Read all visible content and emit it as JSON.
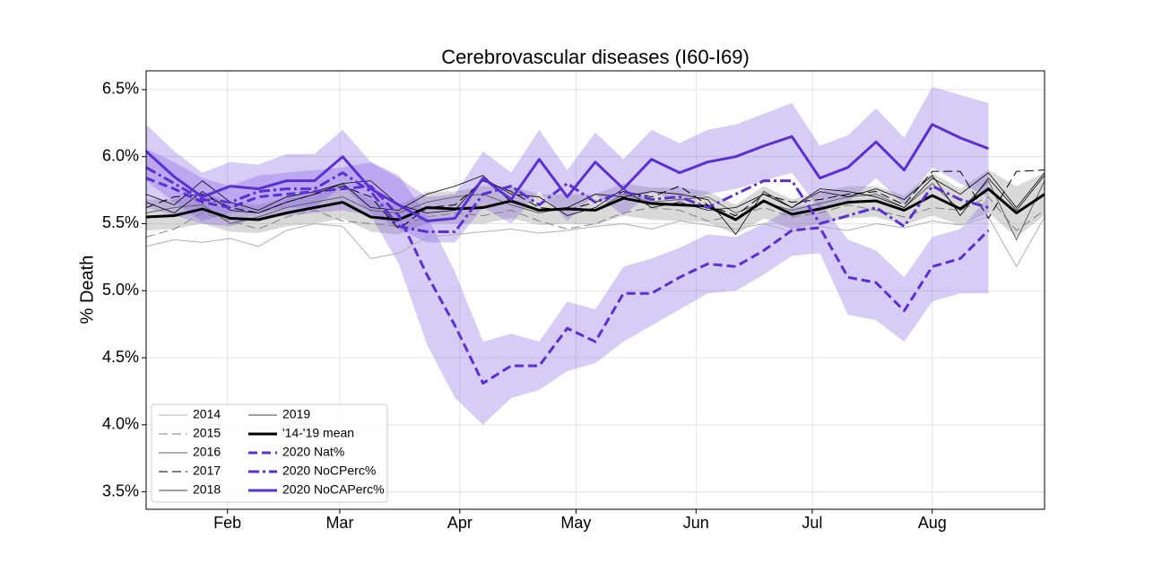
{
  "chart_data": {
    "type": "line",
    "title": "Cerebrovascular diseases (I60-I69)",
    "y_label": "% Death",
    "x": [
      11,
      18.25,
      25.5,
      32.75,
      40,
      47.25,
      54.5,
      61.75,
      69,
      76.25,
      83.5,
      90.75,
      98,
      105.25,
      112.5,
      119.75,
      127,
      134.25,
      141.5,
      148.75,
      156,
      163.25,
      170.5,
      177.75,
      185,
      192.25,
      199.5,
      206.75,
      214,
      221.25,
      228.5,
      235.75,
      243
    ],
    "xlim": [
      11,
      243
    ],
    "xticks": [
      {
        "value": 32,
        "label": "Feb"
      },
      {
        "value": 61,
        "label": "Mar"
      },
      {
        "value": 92,
        "label": "Apr"
      },
      {
        "value": 122,
        "label": "May"
      },
      {
        "value": 153,
        "label": "Jun"
      },
      {
        "value": 183,
        "label": "Jul"
      },
      {
        "value": 214,
        "label": "Aug"
      }
    ],
    "ylim": [
      3.37,
      6.64
    ],
    "yticks": [
      {
        "value": 3.5,
        "label": "3.5%"
      },
      {
        "value": 4.0,
        "label": "4.0%"
      },
      {
        "value": 4.5,
        "label": "4.5%"
      },
      {
        "value": 5.0,
        "label": "5.0%"
      },
      {
        "value": 5.5,
        "label": "5.5%"
      },
      {
        "value": 6.0,
        "label": "6.0%"
      },
      {
        "value": 6.5,
        "label": "6.5%"
      }
    ],
    "grid": true,
    "legend": "lower left",
    "series": [
      {
        "name": "2014",
        "color": "#b0b0b0",
        "linestyle": "solid",
        "linewidth": 1,
        "values": [
          5.33,
          5.38,
          5.36,
          5.39,
          5.33,
          5.45,
          5.5,
          5.48,
          5.24,
          5.28,
          5.4,
          5.42,
          5.44,
          5.46,
          5.43,
          5.45,
          5.48,
          5.5,
          5.46,
          5.52,
          5.49,
          5.46,
          5.5,
          5.44,
          5.48,
          5.45,
          5.5,
          5.47,
          5.52,
          5.49,
          5.55,
          5.18,
          5.55
        ]
      },
      {
        "name": "2015",
        "color": "#808080",
        "linestyle": "dashed",
        "linewidth": 1,
        "values": [
          5.4,
          5.46,
          5.58,
          5.52,
          5.46,
          5.55,
          5.6,
          5.52,
          5.5,
          5.48,
          5.55,
          5.58,
          5.56,
          5.6,
          5.52,
          5.46,
          5.5,
          5.58,
          5.62,
          5.6,
          5.52,
          5.56,
          5.62,
          5.55,
          5.58,
          5.64,
          5.6,
          5.55,
          5.62,
          5.6,
          5.7,
          5.45,
          5.6
        ]
      },
      {
        "name": "2016",
        "color": "#606060",
        "linestyle": "solid",
        "linewidth": 1,
        "values": [
          5.58,
          5.62,
          5.64,
          5.5,
          5.55,
          5.62,
          5.66,
          5.7,
          5.6,
          5.58,
          5.66,
          5.7,
          5.72,
          5.64,
          5.58,
          5.62,
          5.6,
          5.72,
          5.66,
          5.68,
          5.7,
          5.58,
          5.66,
          5.6,
          5.65,
          5.7,
          5.72,
          5.62,
          5.8,
          5.6,
          5.82,
          5.38,
          5.82
        ]
      },
      {
        "name": "2017",
        "color": "#000000",
        "linestyle": "dashed",
        "linewidth": 1,
        "values": [
          5.62,
          5.7,
          5.72,
          5.62,
          5.58,
          5.66,
          5.72,
          5.78,
          5.7,
          5.46,
          5.62,
          5.64,
          5.82,
          5.74,
          5.62,
          5.6,
          5.66,
          5.74,
          5.7,
          5.78,
          5.64,
          5.56,
          5.72,
          5.66,
          5.68,
          5.72,
          5.74,
          5.64,
          5.89,
          5.89,
          5.54,
          5.89,
          5.9
        ]
      },
      {
        "name": "2018",
        "color": "#000000",
        "linestyle": "solid",
        "linewidth": 0.8,
        "values": [
          5.72,
          5.64,
          5.82,
          5.66,
          5.6,
          5.7,
          5.74,
          5.8,
          5.62,
          5.6,
          5.72,
          5.78,
          5.86,
          5.66,
          5.6,
          5.62,
          5.72,
          5.7,
          5.74,
          5.72,
          5.68,
          5.42,
          5.74,
          5.62,
          5.74,
          5.7,
          5.76,
          5.68,
          5.86,
          5.56,
          5.84,
          5.6,
          5.86
        ]
      },
      {
        "name": "2019",
        "color": "#000000",
        "linestyle": "solid",
        "linewidth": 0.8,
        "values": [
          5.66,
          5.58,
          5.74,
          5.6,
          5.58,
          5.66,
          5.72,
          5.8,
          5.82,
          5.64,
          5.58,
          5.6,
          5.84,
          5.72,
          5.7,
          5.56,
          5.62,
          5.76,
          5.62,
          5.66,
          5.6,
          5.62,
          5.72,
          5.62,
          5.76,
          5.74,
          5.7,
          5.62,
          5.84,
          5.72,
          5.88,
          5.62,
          5.88
        ]
      },
      {
        "name": "'14-'19 mean",
        "color": "#000000",
        "linestyle": "solid",
        "linewidth": 3,
        "band_color": "#808080",
        "values": [
          5.55,
          5.56,
          5.61,
          5.54,
          5.53,
          5.58,
          5.62,
          5.66,
          5.55,
          5.53,
          5.62,
          5.61,
          5.62,
          5.67,
          5.6,
          5.61,
          5.6,
          5.69,
          5.65,
          5.64,
          5.63,
          5.53,
          5.67,
          5.57,
          5.61,
          5.66,
          5.67,
          5.6,
          5.71,
          5.61,
          5.76,
          5.58,
          5.72
        ],
        "band_lower": [
          5.45,
          5.46,
          5.5,
          5.44,
          5.43,
          5.48,
          5.5,
          5.54,
          5.44,
          5.42,
          5.5,
          5.5,
          5.5,
          5.54,
          5.49,
          5.5,
          5.49,
          5.56,
          5.53,
          5.52,
          5.51,
          5.42,
          5.54,
          5.46,
          5.5,
          5.54,
          5.55,
          5.49,
          5.56,
          5.49,
          5.58,
          5.4,
          5.56
        ],
        "band_upper": [
          5.68,
          5.68,
          5.74,
          5.66,
          5.64,
          5.7,
          5.74,
          5.8,
          5.68,
          5.64,
          5.74,
          5.74,
          5.78,
          5.78,
          5.72,
          5.72,
          5.72,
          5.8,
          5.77,
          5.77,
          5.74,
          5.64,
          5.78,
          5.68,
          5.74,
          5.78,
          5.78,
          5.71,
          5.88,
          5.76,
          5.9,
          5.78,
          5.88
        ]
      },
      {
        "name": "2020 Nat%",
        "color": "#5b2fd4",
        "linestyle": "dashed",
        "linewidth": 3,
        "band_color": "#7b55e0",
        "values": [
          5.84,
          5.76,
          5.66,
          5.62,
          5.7,
          5.72,
          5.74,
          5.76,
          5.78,
          5.56,
          5.12,
          4.74,
          4.31,
          4.44,
          4.44,
          4.72,
          4.62,
          4.98,
          4.98,
          5.1,
          5.2,
          5.18,
          5.3,
          5.45,
          5.47,
          5.1,
          5.06,
          4.85,
          5.18,
          5.24,
          5.45,
          null,
          null
        ],
        "band_lower": [
          5.62,
          5.56,
          5.5,
          5.48,
          5.54,
          5.56,
          5.58,
          5.6,
          5.56,
          5.2,
          4.6,
          4.2,
          4.0,
          4.2,
          4.26,
          4.4,
          4.46,
          4.62,
          4.74,
          4.86,
          4.98,
          5.0,
          5.12,
          5.26,
          5.28,
          4.82,
          4.78,
          4.62,
          4.92,
          4.98,
          4.98,
          null,
          null
        ],
        "band_upper": [
          6.06,
          5.96,
          5.84,
          5.78,
          5.86,
          5.88,
          5.9,
          5.92,
          5.96,
          5.86,
          5.56,
          5.14,
          4.62,
          4.68,
          4.62,
          4.92,
          4.86,
          5.18,
          5.24,
          5.32,
          5.42,
          5.4,
          5.5,
          5.62,
          5.66,
          5.38,
          5.3,
          5.1,
          5.4,
          5.46,
          5.7,
          null,
          null
        ]
      },
      {
        "name": "2020 NoCPerc%",
        "color": "#5b2fd4",
        "linestyle": "dashdot",
        "linewidth": 3,
        "values": [
          5.92,
          5.8,
          5.68,
          5.66,
          5.74,
          5.76,
          5.76,
          5.88,
          5.74,
          5.48,
          5.44,
          5.44,
          5.72,
          5.78,
          5.64,
          5.8,
          5.66,
          5.74,
          5.68,
          5.7,
          5.62,
          5.72,
          5.82,
          5.82,
          5.5,
          5.56,
          5.62,
          5.48,
          5.78,
          5.68,
          5.62,
          null,
          null
        ]
      },
      {
        "name": "2020 NoCAPerc%",
        "color": "#5b2fd4",
        "linestyle": "solid",
        "linewidth": 3,
        "band_color": "#7b55e0",
        "values": [
          6.04,
          5.85,
          5.7,
          5.78,
          5.76,
          5.82,
          5.82,
          6.0,
          5.76,
          5.64,
          5.52,
          5.54,
          5.84,
          5.68,
          5.98,
          5.7,
          5.96,
          5.76,
          5.98,
          5.88,
          5.96,
          6.0,
          6.08,
          6.15,
          5.84,
          5.92,
          6.11,
          5.9,
          6.24,
          6.14,
          6.06,
          null,
          null
        ],
        "band_lower": [
          5.82,
          5.66,
          5.52,
          5.58,
          5.58,
          5.62,
          5.62,
          5.78,
          5.58,
          5.46,
          5.36,
          5.36,
          5.62,
          5.5,
          5.74,
          5.52,
          5.72,
          5.56,
          5.74,
          5.66,
          5.72,
          5.76,
          5.82,
          5.88,
          5.6,
          5.66,
          5.84,
          5.64,
          5.92,
          5.8,
          5.7,
          null,
          null
        ],
        "band_upper": [
          6.24,
          6.04,
          5.88,
          5.96,
          5.94,
          6.02,
          6.02,
          6.2,
          5.96,
          5.84,
          5.7,
          5.72,
          6.04,
          5.88,
          6.2,
          5.9,
          6.18,
          5.98,
          6.2,
          6.1,
          6.2,
          6.24,
          6.32,
          6.4,
          6.08,
          6.16,
          6.36,
          6.14,
          6.52,
          6.46,
          6.4,
          null,
          null
        ]
      }
    ]
  }
}
